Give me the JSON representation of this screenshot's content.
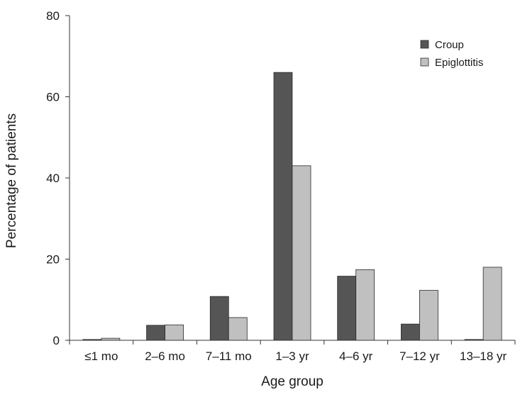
{
  "chart_data": {
    "type": "bar",
    "title": "",
    "xlabel": "Age group",
    "ylabel": "Percentage of patients",
    "categories": [
      "≤1 mo",
      "2–6 mo",
      "7–11 mo",
      "1–3 yr",
      "4–6 yr",
      "7–12 yr",
      "13–18 yr"
    ],
    "series": [
      {
        "name": "Croup",
        "color": "#555555",
        "values": [
          0.2,
          3.7,
          10.8,
          66.0,
          15.8,
          4.0,
          0.2
        ]
      },
      {
        "name": "Epiglottitis",
        "color": "#c0c0c0",
        "values": [
          0.5,
          3.8,
          5.6,
          43.0,
          17.4,
          12.3,
          18.0
        ]
      }
    ],
    "ylim": [
      0,
      80
    ],
    "yticks": [
      0,
      20,
      40,
      60,
      80
    ],
    "grid": false,
    "legend_position": "top-right"
  }
}
